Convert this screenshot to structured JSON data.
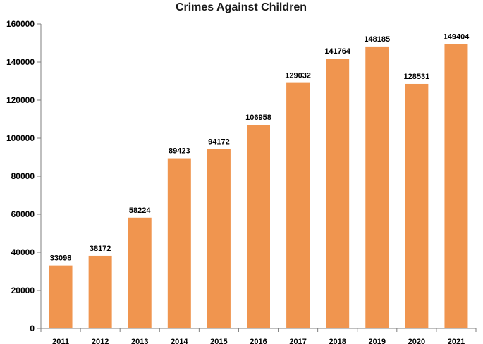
{
  "chart_data": {
    "type": "bar",
    "title": "Crimes Against Children",
    "xlabel": "",
    "ylabel": "",
    "categories": [
      "2011",
      "2012",
      "2013",
      "2014",
      "2015",
      "2016",
      "2017",
      "2018",
      "2019",
      "2020",
      "2021"
    ],
    "values": [
      33098,
      38172,
      58224,
      89423,
      94172,
      106958,
      129032,
      141764,
      148185,
      128531,
      149404
    ],
    "data_labels": [
      "33098",
      "38172",
      "58224",
      "89423",
      "94172",
      "106958",
      "129032",
      "141764",
      "148185",
      "128531",
      "149404"
    ],
    "ylim": [
      0,
      160000
    ],
    "yticks": [
      0,
      20000,
      40000,
      60000,
      80000,
      100000,
      120000,
      140000,
      160000
    ],
    "ytick_labels": [
      "0",
      "20000",
      "40000",
      "60000",
      "80000",
      "100000",
      "120000",
      "140000",
      "160000"
    ],
    "grid": false,
    "legend": "none",
    "bar_color": "#F0954F",
    "axis_color": "#7f7f7f"
  }
}
